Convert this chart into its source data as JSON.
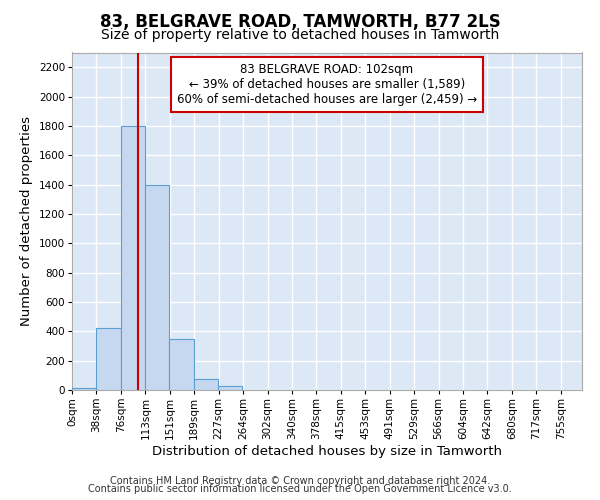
{
  "title": "83, BELGRAVE ROAD, TAMWORTH, B77 2LS",
  "subtitle": "Size of property relative to detached houses in Tamworth",
  "xlabel": "Distribution of detached houses by size in Tamworth",
  "ylabel": "Number of detached properties",
  "bar_left_edges": [
    0,
    38,
    76,
    113,
    151,
    189,
    227,
    264,
    302,
    340,
    378,
    415,
    453,
    491,
    529,
    566,
    604,
    642,
    680,
    717
  ],
  "bar_heights": [
    15,
    425,
    1800,
    1400,
    350,
    75,
    25,
    0,
    0,
    0,
    0,
    0,
    0,
    0,
    0,
    0,
    0,
    0,
    0,
    0
  ],
  "bin_width": 38,
  "bar_color": "#c6d8f0",
  "bar_edge_color": "#5a9fd4",
  "vline_x": 102,
  "vline_color": "#cc0000",
  "ylim": [
    0,
    2300
  ],
  "yticks": [
    0,
    200,
    400,
    600,
    800,
    1000,
    1200,
    1400,
    1600,
    1800,
    2000,
    2200
  ],
  "xtick_labels": [
    "0sqm",
    "38sqm",
    "76sqm",
    "113sqm",
    "151sqm",
    "189sqm",
    "227sqm",
    "264sqm",
    "302sqm",
    "340sqm",
    "378sqm",
    "415sqm",
    "453sqm",
    "491sqm",
    "529sqm",
    "566sqm",
    "604sqm",
    "642sqm",
    "680sqm",
    "717sqm",
    "755sqm"
  ],
  "annotation_title": "83 BELGRAVE ROAD: 102sqm",
  "annotation_line1": "← 39% of detached houses are smaller (1,589)",
  "annotation_line2": "60% of semi-detached houses are larger (2,459) →",
  "annotation_box_color": "#ffffff",
  "annotation_box_edge_color": "#cc0000",
  "footer1": "Contains HM Land Registry data © Crown copyright and database right 2024.",
  "footer2": "Contains public sector information licensed under the Open Government Licence v3.0.",
  "plot_bg_color": "#dce8f5",
  "fig_bg_color": "#ffffff",
  "grid_color": "#ffffff",
  "title_fontsize": 12,
  "subtitle_fontsize": 10,
  "axis_label_fontsize": 9.5,
  "tick_fontsize": 7.5,
  "annotation_fontsize": 8.5,
  "footer_fontsize": 7
}
